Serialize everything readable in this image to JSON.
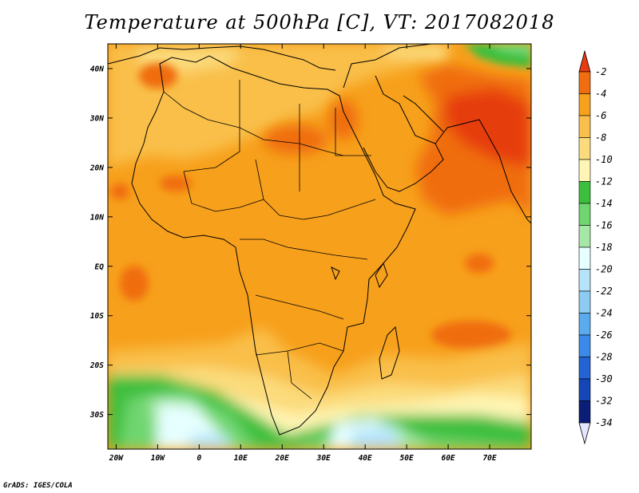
{
  "title": "Temperature at 500hPa [C], VT: 2017082018",
  "credit": "GrADS: IGES/COLA",
  "map": {
    "lon_range": [
      -22,
      80
    ],
    "lat_range": [
      -37,
      45
    ],
    "lon_ticks": [
      {
        "value": -20,
        "label": "20W"
      },
      {
        "value": -10,
        "label": "10W"
      },
      {
        "value": 0,
        "label": "0"
      },
      {
        "value": 10,
        "label": "10E"
      },
      {
        "value": 20,
        "label": "20E"
      },
      {
        "value": 30,
        "label": "30E"
      },
      {
        "value": 40,
        "label": "40E"
      },
      {
        "value": 50,
        "label": "50E"
      },
      {
        "value": 60,
        "label": "60E"
      },
      {
        "value": 70,
        "label": "70E"
      }
    ],
    "lat_ticks": [
      {
        "value": 40,
        "label": "40N"
      },
      {
        "value": 30,
        "label": "30N"
      },
      {
        "value": 20,
        "label": "20N"
      },
      {
        "value": 10,
        "label": "10N"
      },
      {
        "value": 0,
        "label": "EQ"
      },
      {
        "value": -10,
        "label": "10S"
      },
      {
        "value": -20,
        "label": "20S"
      },
      {
        "value": -30,
        "label": "30S"
      }
    ]
  },
  "colorbar": {
    "levels": [
      "-2",
      "-4",
      "-6",
      "-8",
      "-10",
      "-12",
      "-14",
      "-16",
      "-18",
      "-20",
      "-22",
      "-24",
      "-26",
      "-28",
      "-30",
      "-32",
      "-34"
    ],
    "colors": [
      "#e63c10",
      "#f06d10",
      "#f7a01c",
      "#f9bf4a",
      "#fbdb7c",
      "#fff6b5",
      "#3cbf3c",
      "#6fd66f",
      "#a5e8a5",
      "#e6ffff",
      "#b5e4fa",
      "#8dcbf2",
      "#5aaaee",
      "#3b8aea",
      "#2463d4",
      "#1546b8",
      "#0a1e78",
      "#1b0a5c"
    ],
    "top_arrow_color": "#e63c10",
    "bottom_arrow_color": "#e6e6ff"
  }
}
